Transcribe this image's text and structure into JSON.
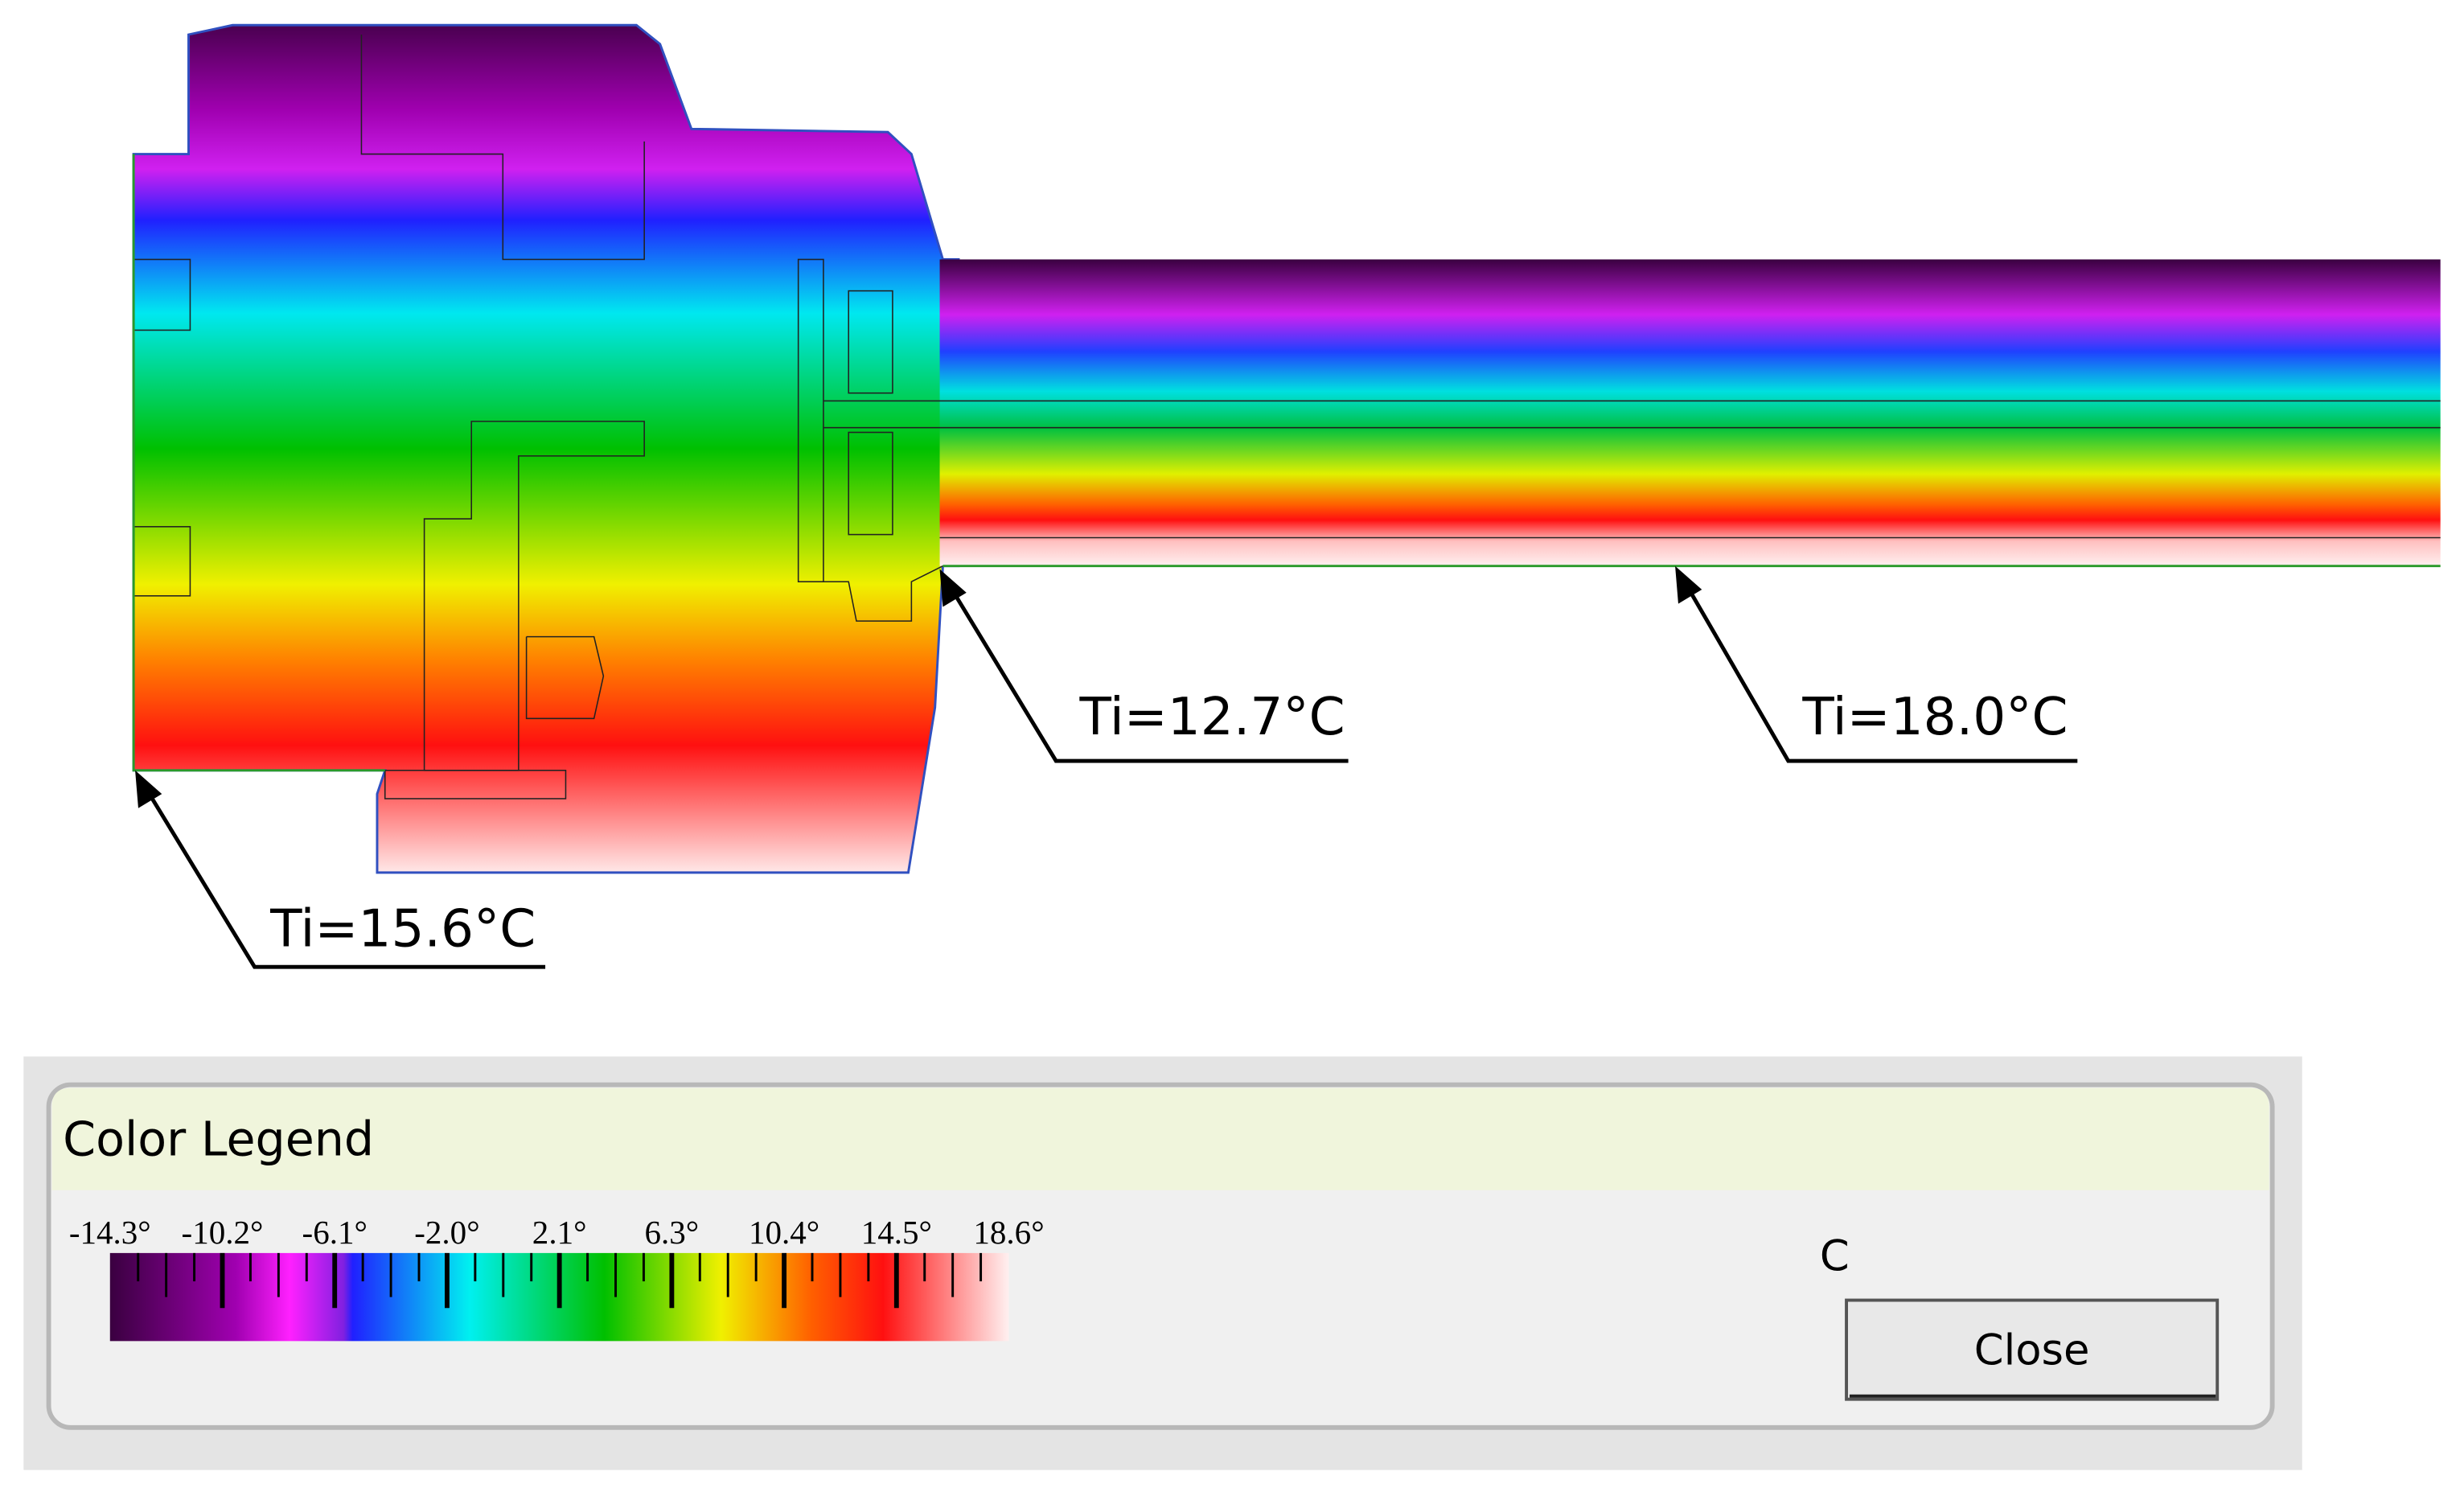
{
  "annotations": [
    "Ti=15.6°C",
    "Ti=12.7°C",
    "Ti=18.0°C"
  ],
  "legend": {
    "title": "Color Legend",
    "ticks": [
      "-14.3°",
      "-10.2°",
      "-6.1°",
      "-2.0°",
      "2.1°",
      "6.3°",
      "10.4°",
      "14.5°",
      "18.6°"
    ],
    "unit": "C",
    "close": "Close"
  }
}
